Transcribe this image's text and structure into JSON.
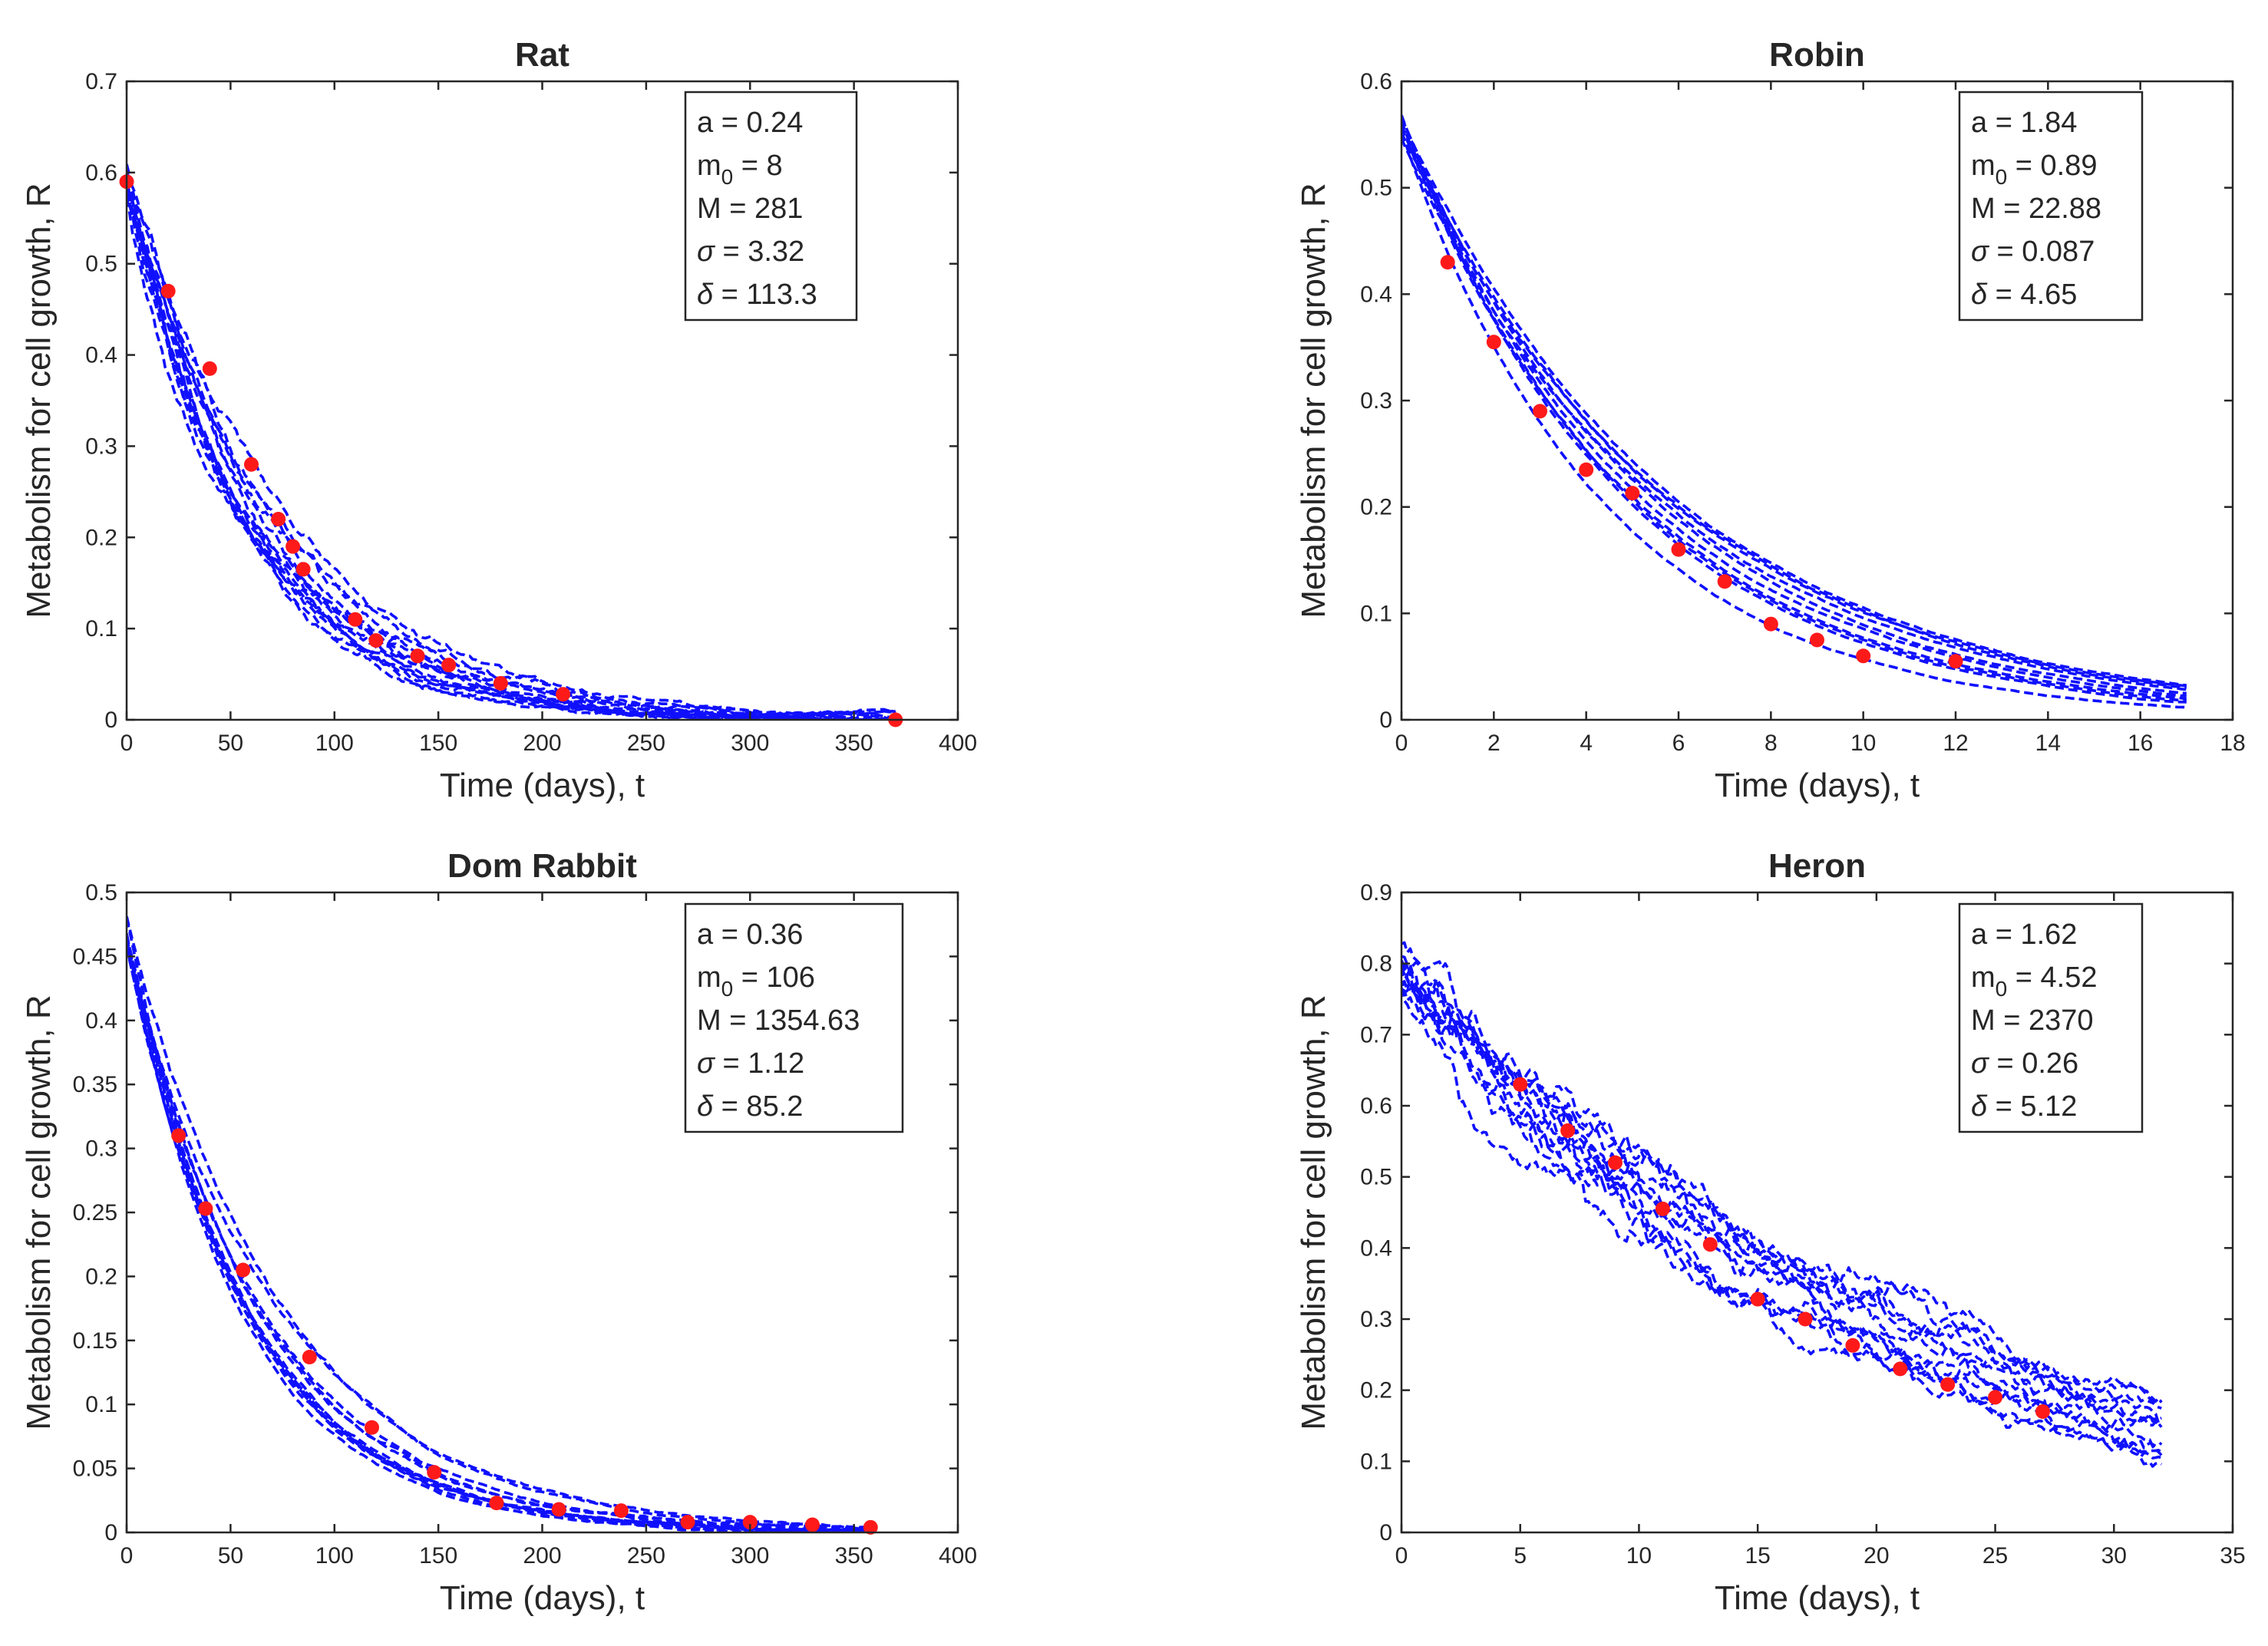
{
  "chart_data": [
    {
      "type": "line",
      "title": "Rat",
      "xlabel": "Time (days), t",
      "ylabel": "Metabolism for cell growth, R",
      "xlim": [
        0,
        400
      ],
      "ylim": [
        0,
        0.7
      ],
      "xticks": [
        0,
        50,
        100,
        150,
        200,
        250,
        300,
        350,
        400
      ],
      "yticks": [
        0,
        0.1,
        0.2,
        0.3,
        0.4,
        0.5,
        0.6,
        0.7
      ],
      "params": [
        "a = 0.24",
        "m₀ = 8",
        "M = 281",
        "σ = 3.32",
        "δ = 113.3"
      ],
      "simulations": {
        "count": 14,
        "t_max": 370,
        "start": 0.59,
        "rate": 0.0158,
        "tail_value": 0.0,
        "noise": 0.022,
        "color": "#1010ff"
      },
      "observed": {
        "color": "#ff1a1a",
        "x": [
          0,
          20,
          40,
          60,
          73,
          80,
          85,
          110,
          120,
          140,
          155,
          180,
          210,
          370
        ],
        "y": [
          0.59,
          0.47,
          0.385,
          0.28,
          0.22,
          0.19,
          0.165,
          0.11,
          0.087,
          0.07,
          0.06,
          0.04,
          0.028,
          0.0
        ]
      }
    },
    {
      "type": "line",
      "title": "Robin",
      "xlabel": "Time (days), t",
      "ylabel": "Metabolism for cell growth, R",
      "xlim": [
        0,
        18
      ],
      "ylim": [
        0,
        0.6
      ],
      "xticks": [
        0,
        2,
        4,
        6,
        8,
        10,
        12,
        14,
        16,
        18
      ],
      "yticks": [
        0,
        0.1,
        0.2,
        0.3,
        0.4,
        0.5,
        0.6
      ],
      "params": [
        "a = 1.84",
        "m₀ = 0.89",
        "M = 22.88",
        "σ = 0.087",
        "δ = 4.65"
      ],
      "simulations": {
        "count": 10,
        "t_max": 17,
        "start": 0.555,
        "rate": 0.196,
        "tail_value": 0.0,
        "noise": 0.0025,
        "color": "#1010ff"
      },
      "observed": {
        "color": "#ff1a1a",
        "x": [
          1,
          2,
          3,
          4,
          5,
          6,
          7,
          8,
          9,
          10,
          12
        ],
        "y": [
          0.43,
          0.355,
          0.29,
          0.235,
          0.213,
          0.16,
          0.13,
          0.09,
          0.075,
          0.06,
          0.055
        ]
      }
    },
    {
      "type": "line",
      "title": "Dom Rabbit",
      "xlabel": "Time (days), t",
      "ylabel": "Metabolism for cell growth, R",
      "xlim": [
        0,
        400
      ],
      "ylim": [
        0,
        0.5
      ],
      "xticks": [
        0,
        50,
        100,
        150,
        200,
        250,
        300,
        350,
        400
      ],
      "yticks": [
        0,
        0.05,
        0.1,
        0.15,
        0.2,
        0.25,
        0.3,
        0.35,
        0.4,
        0.45,
        0.5
      ],
      "params": [
        "a = 0.36",
        "m₀ = 106",
        "M = 1354.63",
        "σ = 1.12",
        "δ = 85.2"
      ],
      "simulations": {
        "count": 12,
        "t_max": 360,
        "start": 0.47,
        "rate": 0.0155,
        "tail_value": 0.0,
        "noise": 0.006,
        "color": "#1010ff"
      },
      "observed": {
        "color": "#ff1a1a",
        "x": [
          25,
          38,
          56,
          88,
          118,
          148,
          178,
          208,
          238,
          270,
          300,
          330,
          358
        ],
        "y": [
          0.31,
          0.253,
          0.205,
          0.137,
          0.082,
          0.047,
          0.023,
          0.018,
          0.017,
          0.008,
          0.008,
          0.006,
          0.004
        ]
      }
    },
    {
      "type": "line",
      "title": "Heron",
      "xlabel": "Time (days), t",
      "ylabel": "Metabolism for cell growth, R",
      "xlim": [
        0,
        35
      ],
      "ylim": [
        0,
        0.9
      ],
      "xticks": [
        0,
        5,
        10,
        15,
        20,
        25,
        30,
        35
      ],
      "yticks": [
        0,
        0.1,
        0.2,
        0.3,
        0.4,
        0.5,
        0.6,
        0.7,
        0.8,
        0.9
      ],
      "params": [
        "a = 1.62",
        "m₀ = 4.52",
        "M = 2370",
        "σ = 0.26",
        "δ = 5.12"
      ],
      "simulations": {
        "count": 12,
        "t_max": 32,
        "start": 0.79,
        "rate": 0.052,
        "tail_value": 0.0,
        "noise": 0.045,
        "color": "#1010ff"
      },
      "observed": {
        "color": "#ff1a1a",
        "x": [
          5,
          7,
          9,
          11,
          13,
          15,
          17,
          19,
          21,
          23,
          25,
          27
        ],
        "y": [
          0.63,
          0.565,
          0.52,
          0.455,
          0.405,
          0.328,
          0.3,
          0.263,
          0.23,
          0.208,
          0.19,
          0.17
        ]
      }
    }
  ]
}
